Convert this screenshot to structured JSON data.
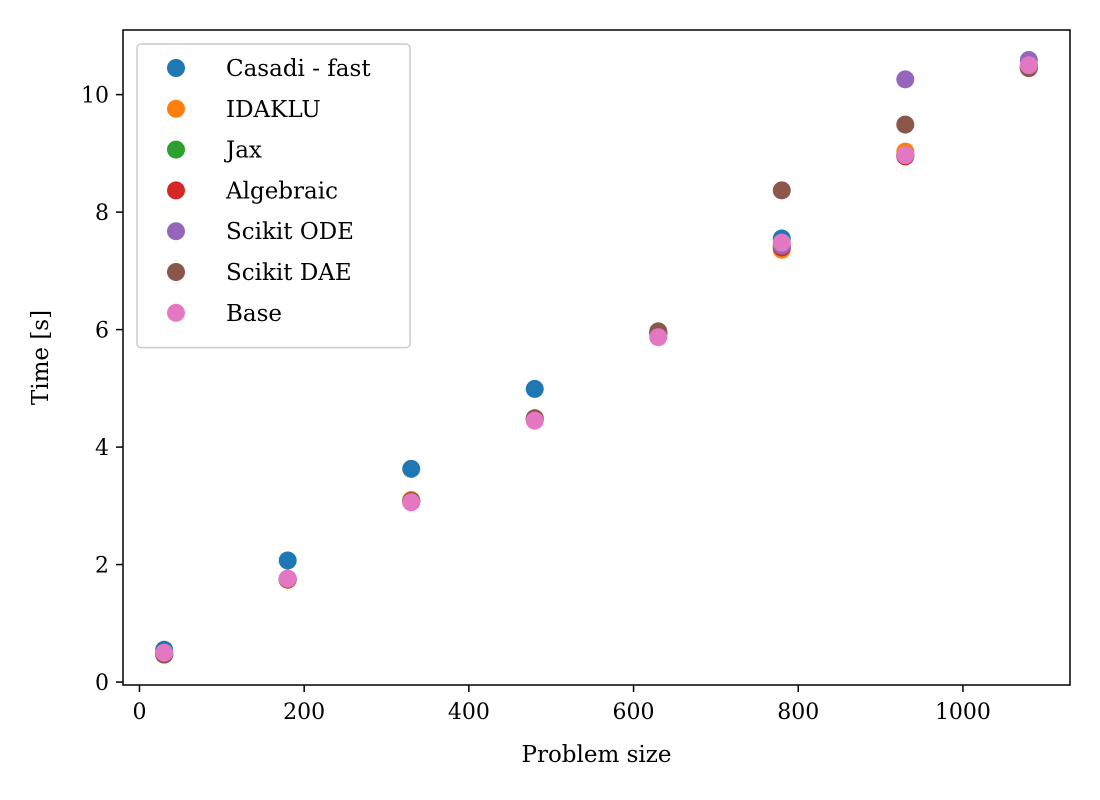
{
  "chart_data": {
    "type": "scatter",
    "title": "",
    "xlabel": "Problem size",
    "ylabel": "Time [s]",
    "xlim": [
      -20,
      1130
    ],
    "ylim": [
      -0.05,
      11.1
    ],
    "xticks": [
      0,
      200,
      400,
      600,
      800,
      1000
    ],
    "yticks": [
      0,
      2,
      4,
      6,
      8,
      10
    ],
    "grid": false,
    "legend_position": "top-left",
    "x": [
      30,
      180,
      330,
      480,
      630,
      780,
      930,
      1080
    ],
    "series": [
      {
        "name": "Casadi - fast",
        "color": "#1f77b4",
        "values": [
          0.55,
          2.07,
          3.63,
          4.99,
          5.95,
          7.55,
          8.97,
          10.5
        ]
      },
      {
        "name": "IDAKLU",
        "color": "#ff7f0e",
        "values": [
          0.47,
          1.74,
          3.1,
          4.48,
          5.93,
          7.36,
          9.03,
          10.47
        ]
      },
      {
        "name": "Jax",
        "color": "#2ca02c",
        "values": [
          0.47,
          1.75,
          3.08,
          4.48,
          5.93,
          7.4,
          8.95,
          10.46
        ]
      },
      {
        "name": "Algebraic",
        "color": "#d62728",
        "values": [
          0.47,
          1.75,
          3.08,
          4.48,
          5.93,
          7.4,
          8.95,
          10.46
        ]
      },
      {
        "name": "Scikit ODE",
        "color": "#9467bd",
        "values": [
          0.48,
          1.76,
          3.07,
          4.49,
          5.95,
          7.43,
          10.26,
          10.59
        ]
      },
      {
        "name": "Scikit DAE",
        "color": "#8c564b",
        "values": [
          0.47,
          1.75,
          3.08,
          4.49,
          5.97,
          8.37,
          9.49,
          10.45
        ]
      },
      {
        "name": "Base",
        "color": "#e377c2",
        "values": [
          0.5,
          1.76,
          3.06,
          4.45,
          5.87,
          7.48,
          8.97,
          10.5
        ]
      }
    ]
  }
}
